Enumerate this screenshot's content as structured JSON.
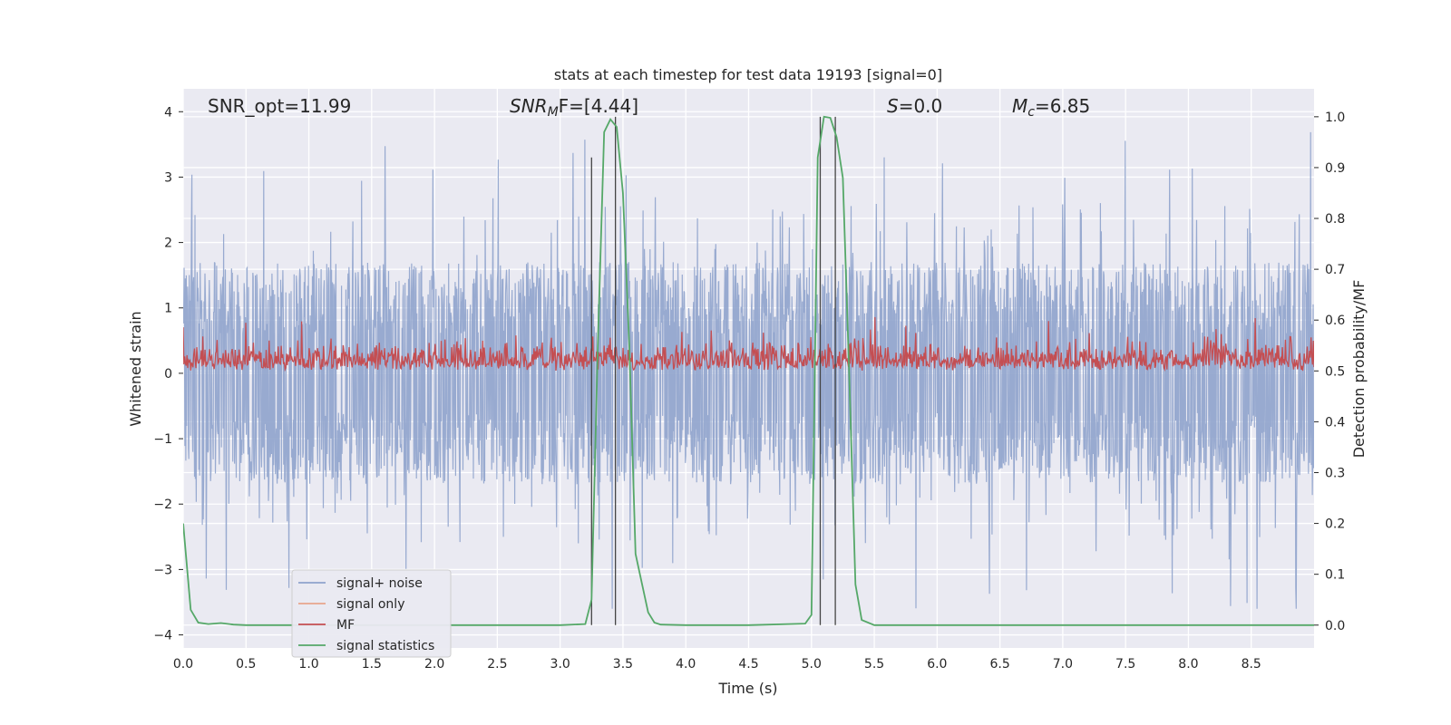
{
  "chart_data": {
    "type": "line",
    "title": "stats at each timestep for test data 19193 [signal=0]",
    "xlabel": "Time (s)",
    "ylabel_left": "Whitened strain",
    "ylabel_right": "Detection probability/MF",
    "xlim": [
      0.0,
      9.0
    ],
    "ylim_left": [
      -4.2,
      4.35
    ],
    "ylim_right": [
      -0.045,
      1.055
    ],
    "x_ticks": [
      "0.0",
      "0.5",
      "1.0",
      "1.5",
      "2.0",
      "2.5",
      "3.0",
      "3.5",
      "4.0",
      "4.5",
      "5.0",
      "5.5",
      "6.0",
      "6.5",
      "7.0",
      "7.5",
      "8.0",
      "8.5"
    ],
    "y_ticks_left": [
      "4",
      "3",
      "2",
      "1",
      "0",
      "−1",
      "−2",
      "−3",
      "−4"
    ],
    "y_ticks_right": [
      "1.0",
      "0.9",
      "0.8",
      "0.7",
      "0.6",
      "0.5",
      "0.4",
      "0.3",
      "0.2",
      "0.1",
      "0.0"
    ],
    "grid": true,
    "legend_position": "lower-left",
    "annotations": {
      "snr_opt": "SNR_opt=11.99",
      "snr_mf_sym": "SNR",
      "snr_mf_sub": "M",
      "snr_mf_rest": "F=[4.44]",
      "s_sym": "S",
      "s_rest": "=0.0",
      "mc_sym": "M",
      "mc_sub": "c",
      "mc_rest": "=6.85"
    },
    "series": [
      {
        "name": "signal+ noise",
        "color": "#8fa3cc",
        "axis": "left",
        "style": "dense noise, approx amplitude range -3.6 to 4.0",
        "envelope": {
          "upper_typical": 1.6,
          "lower_typical": -1.6,
          "peak_max": 4.0,
          "peak_min": -3.6
        }
      },
      {
        "name": "signal only",
        "color": "#e8a58c",
        "axis": "left",
        "values": []
      },
      {
        "name": "MF",
        "color": "#c44e52",
        "axis": "right",
        "style": "noisy band around 0.52",
        "envelope": {
          "baseline": 0.5,
          "top_typical": 0.55,
          "peak": 0.62
        }
      },
      {
        "name": "signal statistics",
        "color": "#55a868",
        "axis": "right",
        "x": [
          0.0,
          0.06,
          0.12,
          0.2,
          0.3,
          0.4,
          0.5,
          0.8,
          1.5,
          2.5,
          3.0,
          3.2,
          3.25,
          3.3,
          3.35,
          3.4,
          3.45,
          3.5,
          3.55,
          3.6,
          3.7,
          3.75,
          3.8,
          4.0,
          4.5,
          4.95,
          5.0,
          5.05,
          5.1,
          5.15,
          5.2,
          5.25,
          5.3,
          5.35,
          5.4,
          5.5,
          6.0,
          7.0,
          8.0,
          9.0
        ],
        "values": [
          0.2,
          0.03,
          0.005,
          0.002,
          0.004,
          0.001,
          0.0,
          0.0,
          0.0,
          0.0,
          0.0,
          0.002,
          0.05,
          0.55,
          0.97,
          0.995,
          0.98,
          0.85,
          0.55,
          0.14,
          0.025,
          0.005,
          0.001,
          0.0,
          0.0,
          0.003,
          0.02,
          0.92,
          1.0,
          0.998,
          0.96,
          0.88,
          0.5,
          0.08,
          0.01,
          0.0,
          0.0,
          0.0,
          0.0,
          0.0
        ]
      }
    ],
    "vertical_lines": {
      "color": "#444444",
      "axis": "right",
      "lines": [
        {
          "x": 3.25,
          "y_top": 0.92
        },
        {
          "x": 3.44,
          "y_top": 1.0
        },
        {
          "x": 5.07,
          "y_top": 1.0
        },
        {
          "x": 5.19,
          "y_top": 1.0
        }
      ]
    },
    "legend": [
      {
        "label": "signal+ noise",
        "color": "#8fa3cc"
      },
      {
        "label": "signal only",
        "color": "#e8a58c"
      },
      {
        "label": "MF",
        "color": "#c44e52"
      },
      {
        "label": "signal statistics",
        "color": "#55a868"
      }
    ]
  }
}
